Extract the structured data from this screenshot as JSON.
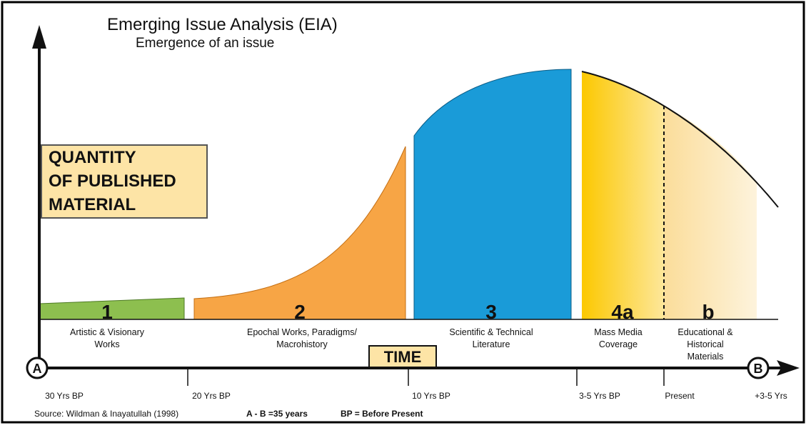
{
  "header": {
    "title": "Emerging Issue Analysis (EIA)",
    "subtitle": "Emergence of an issue"
  },
  "y_axis_label": [
    "QUANTITY",
    "OF PUBLISHED",
    "MATERIAL"
  ],
  "x_axis_label": "TIME",
  "endpoints": [
    "A",
    "B"
  ],
  "stages": [
    {
      "number": "1",
      "label": [
        "Artistic & Visionary",
        "Works"
      ]
    },
    {
      "number": "2",
      "label": [
        "Epochal Works, Paradigms/",
        "Macrohistory"
      ]
    },
    {
      "number": "3",
      "label": [
        "Scientific & Technical",
        "Literature"
      ]
    },
    {
      "number": "4a",
      "label": [
        "Mass Media",
        "Coverage"
      ]
    },
    {
      "number": "b",
      "label": [
        "Educational &",
        "Historical",
        "Materials"
      ]
    }
  ],
  "time_marks": [
    "30 Yrs BP",
    "20 Yrs BP",
    "10 Yrs BP",
    "3-5 Yrs BP",
    "Present",
    "+3-5 Yrs"
  ],
  "footer": {
    "source": "Source: Wildman & Inayatullah (1998)",
    "span": "A - B =35 years",
    "legend": "BP = Before Present"
  }
}
